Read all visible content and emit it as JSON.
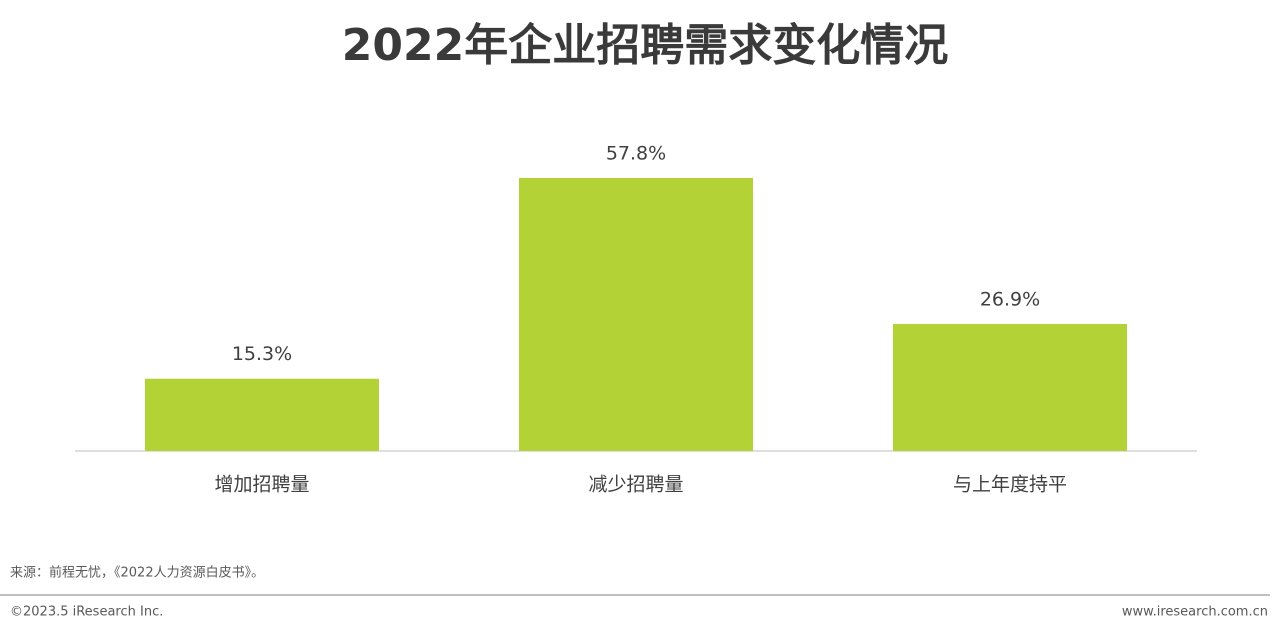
{
  "chart_data": {
    "type": "bar",
    "title": "2022年企业招聘需求变化情况",
    "categories": [
      "增加招聘量",
      "减少招聘量",
      "与上年度持平"
    ],
    "values": [
      15.3,
      57.8,
      26.9
    ],
    "value_labels": [
      "15.3%",
      "57.8%",
      "26.9%"
    ],
    "color": "#b2d235"
  },
  "source": "来源：前程无忧，《2022人力资源白皮书》。",
  "footer": {
    "copyright": "©2023.5 iResearch Inc.",
    "website": "www.iresearch.com.cn"
  }
}
